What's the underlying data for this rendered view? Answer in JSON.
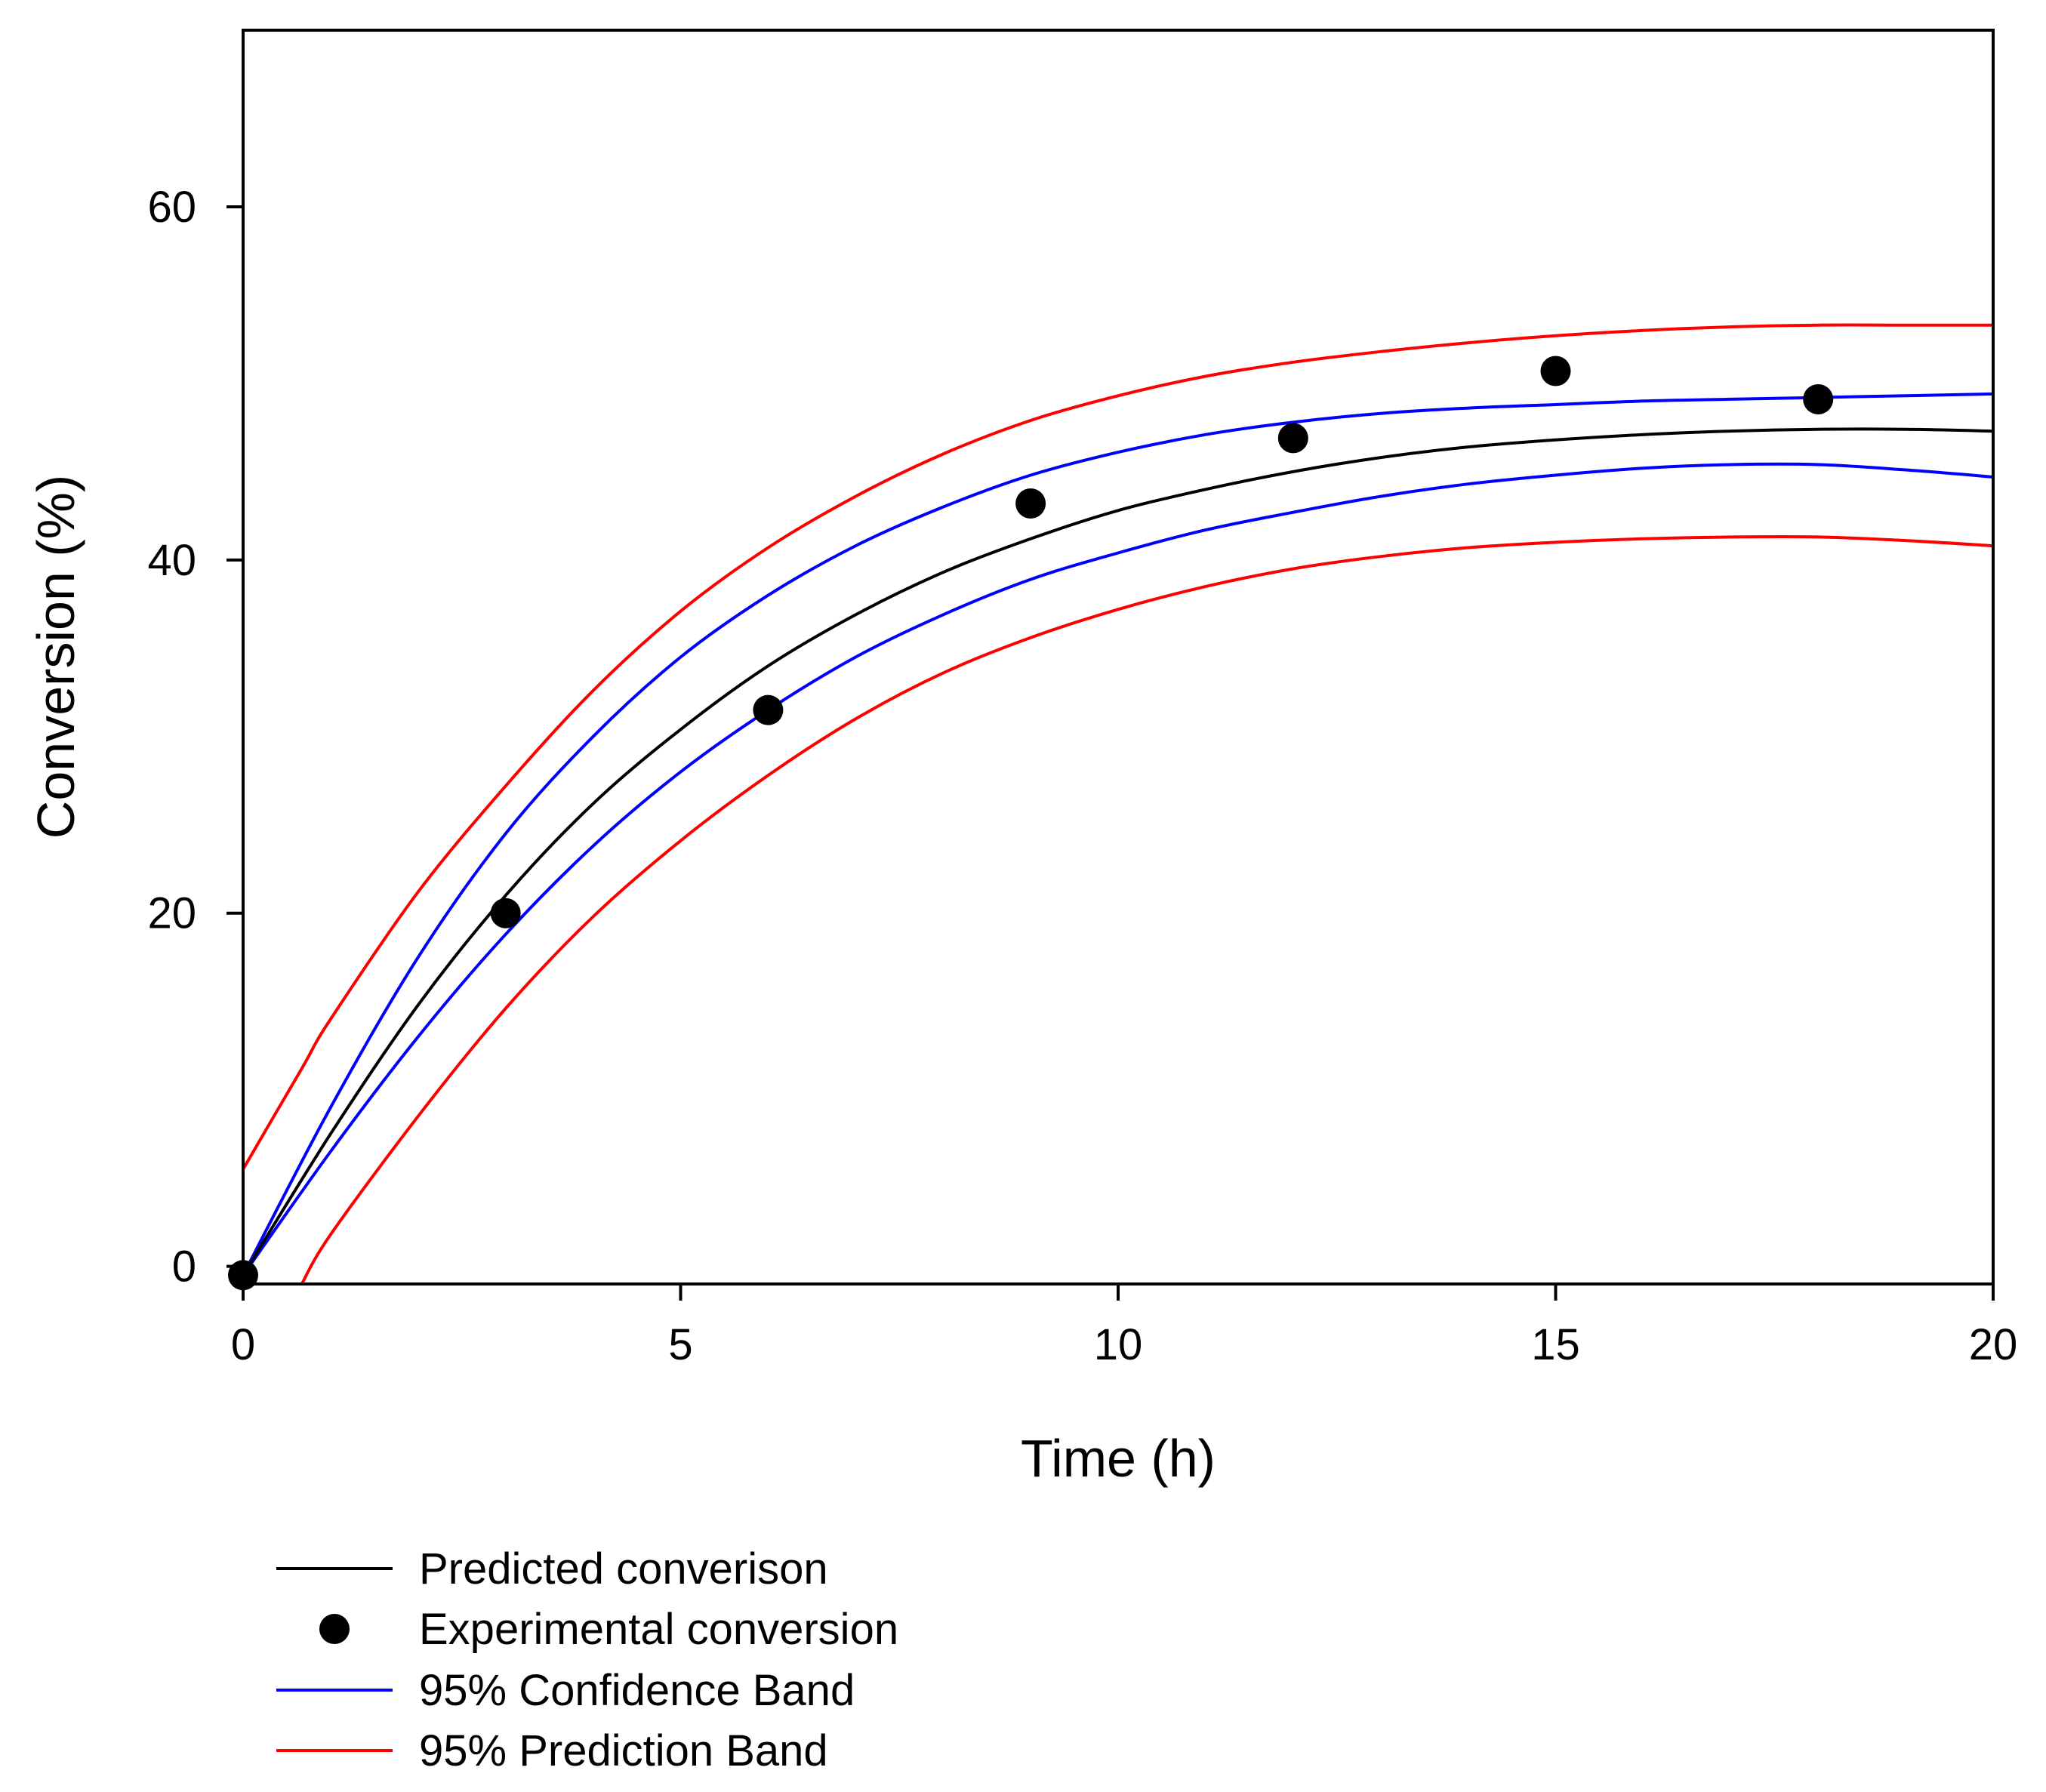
{
  "chart_data": {
    "type": "line",
    "title": "",
    "xlabel": "Time (h)",
    "ylabel": "Conversion (%)",
    "xlim": [
      0,
      20
    ],
    "ylim": [
      -1,
      70
    ],
    "xticks": [
      0,
      5,
      10,
      15,
      20
    ],
    "yticks": [
      0,
      20,
      40,
      60
    ],
    "x_tick_labels": [
      "0",
      "5",
      "10",
      "15",
      "20"
    ],
    "y_tick_labels": [
      "0",
      "20",
      "40",
      "60"
    ],
    "grid": false,
    "legend_position": "bottom-left, below plot",
    "series": [
      {
        "name": "Predicted converison",
        "kind": "line",
        "color": "#000000",
        "x": [
          0,
          1,
          2,
          3,
          4,
          5,
          6,
          7,
          8,
          9,
          10,
          11,
          12,
          13,
          14,
          15,
          16,
          17,
          18,
          19,
          20
        ],
        "y": [
          -0.5,
          7.5,
          14.8,
          21.0,
          26.2,
          30.4,
          34.0,
          36.9,
          39.3,
          41.2,
          42.8,
          44.0,
          45.0,
          45.8,
          46.4,
          46.8,
          47.1,
          47.3,
          47.4,
          47.4,
          47.3
        ]
      },
      {
        "name": "Experimental conversion",
        "kind": "scatter",
        "color": "#000000",
        "x": [
          0,
          3,
          6,
          9,
          12,
          15,
          18
        ],
        "y": [
          -0.5,
          20.0,
          31.5,
          43.2,
          46.9,
          50.7,
          49.1
        ]
      },
      {
        "name": "95% Confidence Band",
        "kind": "band",
        "color": "#0000ff",
        "x": [
          0,
          1,
          2,
          3,
          4,
          5,
          6,
          7,
          8,
          9,
          10,
          11,
          12,
          13,
          14,
          15,
          16,
          17,
          18,
          19,
          20
        ],
        "upper": [
          -0.5,
          9.0,
          17.5,
          24.5,
          30.0,
          34.5,
          38.0,
          40.8,
          43.0,
          44.8,
          46.1,
          47.1,
          47.8,
          48.3,
          48.6,
          48.8,
          49.0,
          49.1,
          49.2,
          49.3,
          49.4
        ],
        "lower": [
          -0.5,
          6.5,
          13.0,
          18.8,
          23.8,
          28.0,
          31.5,
          34.5,
          36.9,
          38.9,
          40.4,
          41.7,
          42.7,
          43.6,
          44.3,
          44.8,
          45.2,
          45.4,
          45.4,
          45.1,
          44.7
        ]
      },
      {
        "name": "95% Prediction Band",
        "kind": "band",
        "color": "#ff0000",
        "x": [
          0,
          0.67,
          1,
          2,
          3,
          4,
          5,
          6,
          7,
          8,
          9,
          10,
          11,
          12,
          13,
          14,
          15,
          16,
          17,
          18,
          19,
          20
        ],
        "upper": [
          5.5,
          11.2,
          14.0,
          21.2,
          27.2,
          32.6,
          37.1,
          40.7,
          43.6,
          46.0,
          47.9,
          49.3,
          50.4,
          51.2,
          51.8,
          52.3,
          52.7,
          53.0,
          53.2,
          53.3,
          53.3,
          53.3
        ],
        "lower": [
          null,
          -1.0,
          1.8,
          8.5,
          14.6,
          19.8,
          24.1,
          27.8,
          31.0,
          33.6,
          35.6,
          37.2,
          38.5,
          39.5,
          40.2,
          40.7,
          41.0,
          41.2,
          41.3,
          41.3,
          41.1,
          40.8
        ]
      }
    ]
  },
  "legend": [
    {
      "label": "Predicted converison",
      "marker": "line",
      "color": "#000000"
    },
    {
      "label": "Experimental conversion",
      "marker": "dot",
      "color": "#000000"
    },
    {
      "label": "95% Confidence Band",
      "marker": "line",
      "color": "#0000ff"
    },
    {
      "label": "95% Prediction Band",
      "marker": "line",
      "color": "#ff0000"
    }
  ]
}
